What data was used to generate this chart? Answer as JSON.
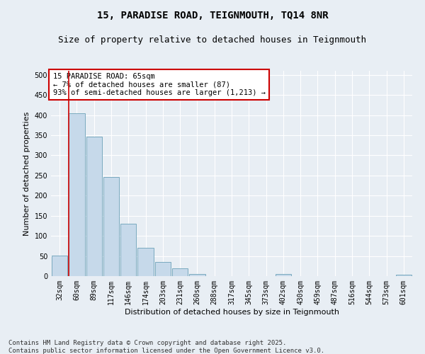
{
  "title": "15, PARADISE ROAD, TEIGNMOUTH, TQ14 8NR",
  "subtitle": "Size of property relative to detached houses in Teignmouth",
  "xlabel": "Distribution of detached houses by size in Teignmouth",
  "ylabel": "Number of detached properties",
  "bar_labels": [
    "32sqm",
    "60sqm",
    "89sqm",
    "117sqm",
    "146sqm",
    "174sqm",
    "203sqm",
    "231sqm",
    "260sqm",
    "288sqm",
    "317sqm",
    "345sqm",
    "373sqm",
    "402sqm",
    "430sqm",
    "459sqm",
    "487sqm",
    "516sqm",
    "544sqm",
    "573sqm",
    "601sqm"
  ],
  "bar_values": [
    51,
    405,
    346,
    246,
    130,
    70,
    35,
    19,
    5,
    0,
    0,
    0,
    0,
    5,
    0,
    0,
    0,
    0,
    0,
    0,
    3
  ],
  "bar_color": "#c6d9ea",
  "bar_edge_color": "#7aaabf",
  "vline_color": "#cc0000",
  "annotation_box_text": "15 PARADISE ROAD: 65sqm\n← 7% of detached houses are smaller (87)\n93% of semi-detached houses are larger (1,213) →",
  "annotation_box_color": "#cc0000",
  "annotation_box_bg": "#ffffff",
  "ylim": [
    0,
    510
  ],
  "yticks": [
    0,
    50,
    100,
    150,
    200,
    250,
    300,
    350,
    400,
    450,
    500
  ],
  "footer_line1": "Contains HM Land Registry data © Crown copyright and database right 2025.",
  "footer_line2": "Contains public sector information licensed under the Open Government Licence v3.0.",
  "background_color": "#e8eef4",
  "plot_background_color": "#e8eef4",
  "grid_color": "#ffffff",
  "title_fontsize": 10,
  "subtitle_fontsize": 9,
  "axis_label_fontsize": 8,
  "tick_fontsize": 7,
  "annotation_fontsize": 7.5,
  "footer_fontsize": 6.5
}
